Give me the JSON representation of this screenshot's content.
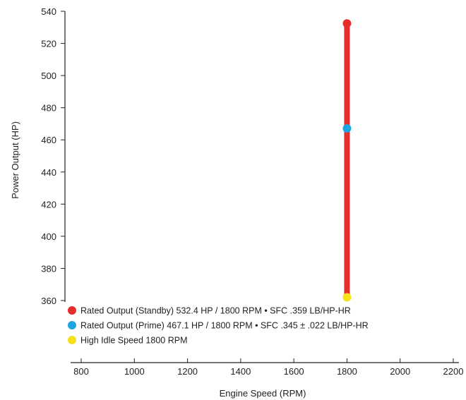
{
  "chart_data": {
    "type": "scatter",
    "xlabel": "Engine Speed (RPM)",
    "ylabel": "Power Output (HP)",
    "xlim": [
      800,
      2200
    ],
    "ylim": [
      360,
      540
    ],
    "x_ticks": [
      800,
      1000,
      1200,
      1400,
      1600,
      1800,
      2000,
      2200
    ],
    "y_ticks": [
      360,
      380,
      400,
      420,
      440,
      460,
      480,
      500,
      520,
      540
    ],
    "grid": false,
    "legend_position": "bottom-left",
    "line": {
      "color": "#e52d2b",
      "x": [
        1800,
        1800
      ],
      "y": [
        362,
        532.4
      ]
    },
    "series": [
      {
        "name": "Rated Output (Standby) 532.4 HP / 1800 RPM • SFC .359 LB/HP-HR",
        "color": "#e52d2b",
        "x": [
          1800
        ],
        "y": [
          532.4
        ]
      },
      {
        "name": "Rated Output (Prime) 467.1 HP / 1800 RPM • SFC .345 ± .022 LB/HP-HR",
        "color": "#1ea5e0",
        "x": [
          1800
        ],
        "y": [
          467.1
        ]
      },
      {
        "name": "High Idle Speed 1800 RPM",
        "color": "#f6e21a",
        "x": [
          1800
        ],
        "y": [
          362
        ]
      }
    ]
  }
}
